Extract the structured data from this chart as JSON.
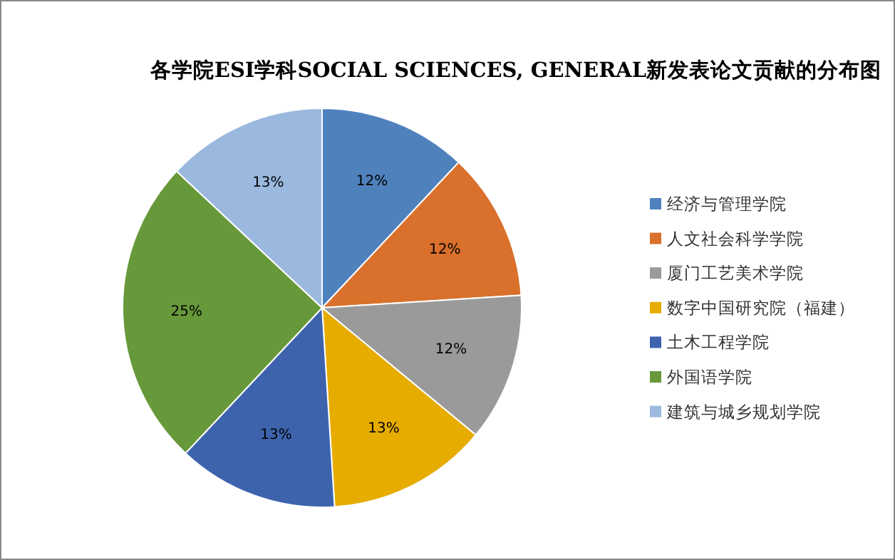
{
  "chart_data": {
    "type": "pie",
    "title": "各学院ESI学科SOCIAL SCIENCES, GENERAL新发表论文贡献的分布图",
    "categories": [
      "经济与管理学院",
      "人文社会科学学院",
      "厦门工艺美术学院",
      "数字中国研究院（福建）",
      "土木工程学院",
      "外国语学院",
      "建筑与城乡规划学院"
    ],
    "values": [
      12,
      12,
      12,
      13,
      13,
      25,
      13
    ],
    "colors": [
      "#4f81bd",
      "#d9702b",
      "#9a9a9a",
      "#e6ac00",
      "#3d63ad",
      "#67993b",
      "#9bb8de"
    ],
    "value_labels": [
      "12%",
      "12%",
      "12%",
      "13%",
      "13%",
      "25%",
      "13%"
    ],
    "legend": "right"
  }
}
